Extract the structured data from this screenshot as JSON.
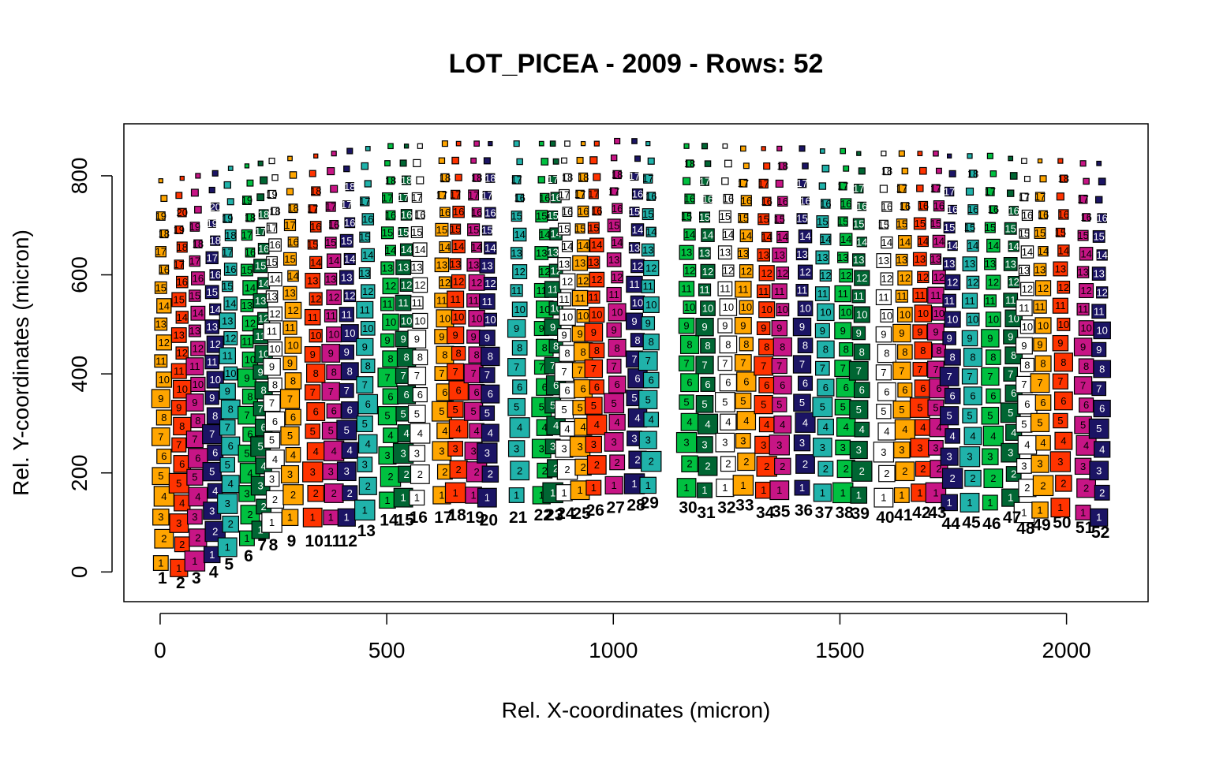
{
  "chart_data": {
    "type": "scatter",
    "title": "LOT_PICEA - 2009 - Rows: 52",
    "xlabel": "Rel. X-coordinates (micron)",
    "ylabel": "Rel. Y-coordinates (micron)",
    "xlim": [
      -80,
      2180
    ],
    "ylim": [
      -60,
      905
    ],
    "xticks": [
      0,
      500,
      1000,
      1500,
      2000
    ],
    "yticks": [
      0,
      200,
      400,
      600,
      800
    ],
    "grid": false,
    "legend": "none",
    "cell_fill_palette": [
      "#FFA500",
      "#FF3300",
      "#C71585",
      "#1B1464",
      "#20B2AA",
      "#00C040",
      "#006633",
      "#FFFFFF"
    ],
    "cell_border_color": "#000000",
    "rows": [
      {
        "row": 1,
        "x": 5,
        "y_bottom": 18,
        "y_top": 790,
        "n_cells": 21,
        "label_y": -12
      },
      {
        "row": 2,
        "x": 45,
        "y_bottom": 8,
        "y_top": 795,
        "n_cells": 22,
        "label_y": -22
      },
      {
        "row": 3,
        "x": 80,
        "y_bottom": 22,
        "y_top": 800,
        "n_cells": 22,
        "label_y": -12
      },
      {
        "row": 4,
        "x": 118,
        "y_bottom": 35,
        "y_top": 805,
        "n_cells": 22,
        "label_y": 0
      },
      {
        "row": 5,
        "x": 152,
        "y_bottom": 50,
        "y_top": 815,
        "n_cells": 22,
        "label_y": 16
      },
      {
        "row": 6,
        "x": 195,
        "y_bottom": 68,
        "y_top": 820,
        "n_cells": 21,
        "label_y": 32
      },
      {
        "row": 7,
        "x": 225,
        "y_bottom": 85,
        "y_top": 825,
        "n_cells": 21,
        "label_y": 55
      },
      {
        "row": 8,
        "x": 250,
        "y_bottom": 100,
        "y_top": 830,
        "n_cells": 21,
        "label_y": 55
      },
      {
        "row": 9,
        "x": 290,
        "y_bottom": 110,
        "y_top": 835,
        "n_cells": 21,
        "label_y": 63
      },
      {
        "row": 10,
        "x": 340,
        "y_bottom": 110,
        "y_top": 840,
        "n_cells": 20,
        "label_y": 63
      },
      {
        "row": 11,
        "x": 380,
        "y_bottom": 110,
        "y_top": 845,
        "n_cells": 20,
        "label_y": 63
      },
      {
        "row": 12,
        "x": 415,
        "y_bottom": 110,
        "y_top": 850,
        "n_cells": 20,
        "label_y": 63
      },
      {
        "row": 13,
        "x": 455,
        "y_bottom": 125,
        "y_top": 855,
        "n_cells": 20,
        "label_y": 83
      },
      {
        "row": 14,
        "x": 505,
        "y_bottom": 145,
        "y_top": 860,
        "n_cells": 20,
        "label_y": 105
      },
      {
        "row": 15,
        "x": 540,
        "y_bottom": 150,
        "y_top": 860,
        "n_cells": 20,
        "label_y": 105
      },
      {
        "row": 16,
        "x": 570,
        "y_bottom": 150,
        "y_top": 860,
        "n_cells": 20,
        "label_y": 110
      },
      {
        "row": 17,
        "x": 625,
        "y_bottom": 155,
        "y_top": 865,
        "n_cells": 20,
        "label_y": 110
      },
      {
        "row": 18,
        "x": 655,
        "y_bottom": 160,
        "y_top": 865,
        "n_cells": 20,
        "label_y": 115
      },
      {
        "row": 19,
        "x": 695,
        "y_bottom": 155,
        "y_top": 865,
        "n_cells": 20,
        "label_y": 110
      },
      {
        "row": 20,
        "x": 725,
        "y_bottom": 150,
        "y_top": 865,
        "n_cells": 20,
        "label_y": 105
      },
      {
        "row": 21,
        "x": 790,
        "y_bottom": 155,
        "y_top": 865,
        "n_cells": 19,
        "label_y": 110
      },
      {
        "row": 22,
        "x": 845,
        "y_bottom": 155,
        "y_top": 865,
        "n_cells": 19,
        "label_y": 115
      },
      {
        "row": 23,
        "x": 870,
        "y_bottom": 160,
        "y_top": 865,
        "n_cells": 19,
        "label_y": 115
      },
      {
        "row": 24,
        "x": 895,
        "y_bottom": 160,
        "y_top": 865,
        "n_cells": 20,
        "label_y": 118
      },
      {
        "row": 25,
        "x": 930,
        "y_bottom": 165,
        "y_top": 865,
        "n_cells": 20,
        "label_y": 118
      },
      {
        "row": 26,
        "x": 960,
        "y_bottom": 170,
        "y_top": 865,
        "n_cells": 20,
        "label_y": 125
      },
      {
        "row": 27,
        "x": 1005,
        "y_bottom": 175,
        "y_top": 870,
        "n_cells": 20,
        "label_y": 130
      },
      {
        "row": 28,
        "x": 1050,
        "y_bottom": 178,
        "y_top": 870,
        "n_cells": 19,
        "label_y": 135
      },
      {
        "row": 29,
        "x": 1080,
        "y_bottom": 175,
        "y_top": 865,
        "n_cells": 19,
        "label_y": 140
      },
      {
        "row": 30,
        "x": 1165,
        "y_bottom": 170,
        "y_top": 860,
        "n_cells": 19,
        "label_y": 130
      },
      {
        "row": 31,
        "x": 1205,
        "y_bottom": 165,
        "y_top": 860,
        "n_cells": 19,
        "label_y": 120
      },
      {
        "row": 32,
        "x": 1250,
        "y_bottom": 170,
        "y_top": 860,
        "n_cells": 19,
        "label_y": 130
      },
      {
        "row": 33,
        "x": 1290,
        "y_bottom": 175,
        "y_top": 855,
        "n_cells": 19,
        "label_y": 135
      },
      {
        "row": 34,
        "x": 1335,
        "y_bottom": 165,
        "y_top": 855,
        "n_cells": 19,
        "label_y": 120
      },
      {
        "row": 35,
        "x": 1370,
        "y_bottom": 165,
        "y_top": 855,
        "n_cells": 19,
        "label_y": 122
      },
      {
        "row": 36,
        "x": 1420,
        "y_bottom": 170,
        "y_top": 855,
        "n_cells": 19,
        "label_y": 125
      },
      {
        "row": 37,
        "x": 1465,
        "y_bottom": 160,
        "y_top": 850,
        "n_cells": 19,
        "label_y": 120
      },
      {
        "row": 38,
        "x": 1510,
        "y_bottom": 160,
        "y_top": 850,
        "n_cells": 19,
        "label_y": 120
      },
      {
        "row": 39,
        "x": 1545,
        "y_bottom": 155,
        "y_top": 845,
        "n_cells": 19,
        "label_y": 118
      },
      {
        "row": 40,
        "x": 1600,
        "y_bottom": 150,
        "y_top": 845,
        "n_cells": 19,
        "label_y": 110
      },
      {
        "row": 41,
        "x": 1640,
        "y_bottom": 155,
        "y_top": 845,
        "n_cells": 19,
        "label_y": 115
      },
      {
        "row": 42,
        "x": 1680,
        "y_bottom": 160,
        "y_top": 845,
        "n_cells": 19,
        "label_y": 120
      },
      {
        "row": 43,
        "x": 1715,
        "y_bottom": 160,
        "y_top": 845,
        "n_cells": 19,
        "label_y": 120
      },
      {
        "row": 44,
        "x": 1745,
        "y_bottom": 140,
        "y_top": 840,
        "n_cells": 19,
        "label_y": 98
      },
      {
        "row": 45,
        "x": 1790,
        "y_bottom": 140,
        "y_top": 840,
        "n_cells": 19,
        "label_y": 100
      },
      {
        "row": 46,
        "x": 1835,
        "y_bottom": 140,
        "y_top": 840,
        "n_cells": 19,
        "label_y": 98
      },
      {
        "row": 47,
        "x": 1880,
        "y_bottom": 150,
        "y_top": 835,
        "n_cells": 19,
        "label_y": 110
      },
      {
        "row": 48,
        "x": 1910,
        "y_bottom": 120,
        "y_top": 830,
        "n_cells": 19,
        "label_y": 88
      },
      {
        "row": 49,
        "x": 1945,
        "y_bottom": 125,
        "y_top": 830,
        "n_cells": 19,
        "label_y": 95
      },
      {
        "row": 50,
        "x": 1990,
        "y_bottom": 130,
        "y_top": 830,
        "n_cells": 19,
        "label_y": 100
      },
      {
        "row": 51,
        "x": 2040,
        "y_bottom": 120,
        "y_top": 825,
        "n_cells": 19,
        "label_y": 90
      },
      {
        "row": 52,
        "x": 2075,
        "y_bottom": 110,
        "y_top": 825,
        "n_cells": 19,
        "label_y": 80
      }
    ]
  }
}
